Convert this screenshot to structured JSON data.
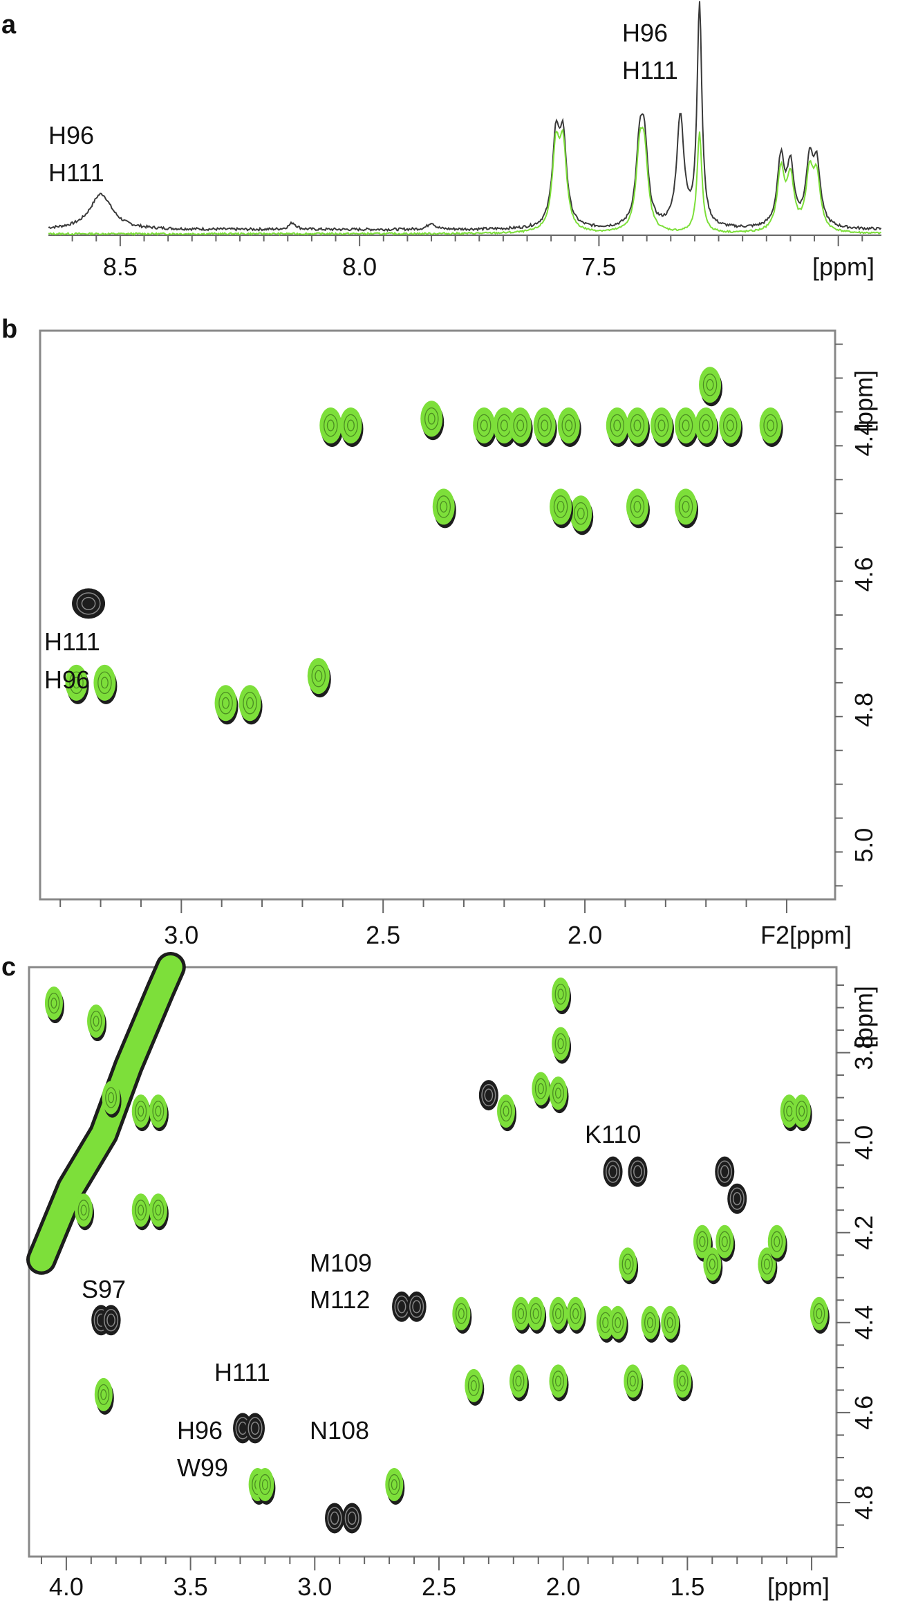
{
  "chart_data": [
    {
      "panel": "a",
      "type": "line",
      "x_unit": "[ppm]",
      "xlim": [
        8.65,
        6.91
      ],
      "xticks": [
        "8.5",
        "8.0",
        "7.5"
      ],
      "xtick_values": [
        8.5,
        8.0,
        7.5
      ],
      "series": [
        {
          "color": "#3a3a3a",
          "peaks": [
            [
              8.54,
              0.16
            ],
            [
              8.14,
              0.03
            ],
            [
              7.85,
              0.03
            ],
            [
              7.59,
              0.38
            ],
            [
              7.575,
              0.38
            ],
            [
              7.415,
              0.33
            ],
            [
              7.405,
              0.33
            ],
            [
              7.33,
              0.5
            ],
            [
              7.29,
              1.0
            ],
            [
              7.12,
              0.3
            ],
            [
              7.1,
              0.26
            ],
            [
              7.06,
              0.28
            ],
            [
              7.045,
              0.26
            ]
          ]
        },
        {
          "color": "#7ddf3a",
          "peaks": [
            [
              7.59,
              0.36
            ],
            [
              7.575,
              0.36
            ],
            [
              7.415,
              0.31
            ],
            [
              7.405,
              0.31
            ],
            [
              7.29,
              0.45
            ],
            [
              7.12,
              0.27
            ],
            [
              7.1,
              0.23
            ],
            [
              7.06,
              0.25
            ],
            [
              7.045,
              0.23
            ]
          ]
        }
      ],
      "annotations": [
        {
          "lines": [
            "H96",
            "H111"
          ],
          "x": 8.54
        },
        {
          "lines": [
            "H96",
            "H111"
          ],
          "x": 7.29
        }
      ]
    },
    {
      "panel": "b",
      "type": "scatter",
      "x_unit": "F2[ppm]",
      "y_unit": "[ppm]",
      "xlim": [
        3.35,
        1.38
      ],
      "ylim": [
        4.24,
        5.08
      ],
      "xticks": [
        "3.0",
        "2.5",
        "2.0"
      ],
      "xtick_values": [
        3.0,
        2.5,
        2.0
      ],
      "yticks": [
        "4.4",
        "4.6",
        "4.8",
        "5.0"
      ],
      "ytick_values": [
        4.4,
        4.6,
        4.8,
        5.0
      ],
      "peaks_black_only": [
        [
          3.23,
          4.64
        ]
      ],
      "peaks_both": [
        [
          3.19,
          4.76
        ],
        [
          3.26,
          4.76
        ],
        [
          2.89,
          4.79
        ],
        [
          2.83,
          4.79
        ],
        [
          2.66,
          4.75
        ],
        [
          2.63,
          4.38
        ],
        [
          2.58,
          4.38
        ],
        [
          2.38,
          4.37
        ],
        [
          2.35,
          4.5
        ],
        [
          2.25,
          4.38
        ],
        [
          2.2,
          4.38
        ],
        [
          2.16,
          4.38
        ],
        [
          2.1,
          4.38
        ],
        [
          2.04,
          4.38
        ],
        [
          2.01,
          4.51
        ],
        [
          2.06,
          4.5
        ],
        [
          1.92,
          4.38
        ],
        [
          1.87,
          4.38
        ],
        [
          1.81,
          4.38
        ],
        [
          1.75,
          4.38
        ],
        [
          1.7,
          4.38
        ],
        [
          1.64,
          4.38
        ],
        [
          1.54,
          4.38
        ],
        [
          1.87,
          4.5
        ],
        [
          1.75,
          4.5
        ],
        [
          1.69,
          4.32
        ]
      ],
      "annotations": [
        {
          "lines": [
            "H111",
            "H96"
          ],
          "x": 3.36,
          "y": 4.74
        }
      ]
    },
    {
      "panel": "c",
      "type": "scatter",
      "x_unit": "[ppm]",
      "y_unit": "[ppm]",
      "xlim": [
        4.15,
        0.9
      ],
      "ylim": [
        3.61,
        4.92
      ],
      "xticks": [
        "4.0",
        "3.5",
        "3.0",
        "2.5",
        "2.0",
        "1.5"
      ],
      "xtick_values": [
        4.0,
        3.5,
        3.0,
        2.5,
        2.0,
        1.5
      ],
      "yticks": [
        "3.8",
        "4.0",
        "4.2",
        "4.4",
        "4.6",
        "4.8"
      ],
      "ytick_values": [
        3.8,
        4.0,
        4.2,
        4.4,
        4.6,
        4.8
      ],
      "peaks_black_only": [
        [
          3.86,
          4.39
        ],
        [
          3.82,
          4.39
        ],
        [
          3.29,
          4.63
        ],
        [
          3.24,
          4.63
        ],
        [
          2.65,
          4.36
        ],
        [
          2.59,
          4.36
        ],
        [
          1.8,
          4.06
        ],
        [
          1.7,
          4.06
        ],
        [
          2.92,
          4.83
        ],
        [
          2.85,
          4.83
        ],
        [
          2.3,
          3.89
        ],
        [
          1.35,
          4.06
        ],
        [
          1.3,
          4.12
        ]
      ],
      "peaks_both": [
        [
          3.23,
          4.76
        ],
        [
          3.2,
          4.76
        ],
        [
          3.85,
          4.56
        ],
        [
          2.68,
          4.76
        ],
        [
          2.41,
          4.38
        ],
        [
          2.36,
          4.54
        ],
        [
          2.23,
          3.93
        ],
        [
          2.17,
          4.38
        ],
        [
          2.11,
          4.38
        ],
        [
          2.18,
          4.53
        ],
        [
          2.09,
          3.88
        ],
        [
          2.01,
          3.67
        ],
        [
          2.01,
          3.78
        ],
        [
          2.02,
          3.89
        ],
        [
          2.02,
          4.53
        ],
        [
          2.02,
          4.38
        ],
        [
          1.95,
          4.38
        ],
        [
          1.83,
          4.4
        ],
        [
          1.78,
          4.4
        ],
        [
          1.72,
          4.53
        ],
        [
          1.74,
          4.27
        ],
        [
          1.65,
          4.4
        ],
        [
          1.57,
          4.4
        ],
        [
          1.52,
          4.53
        ],
        [
          1.44,
          4.22
        ],
        [
          1.4,
          4.27
        ],
        [
          1.35,
          4.22
        ],
        [
          1.18,
          4.27
        ],
        [
          1.14,
          4.22
        ],
        [
          1.09,
          3.93
        ],
        [
          1.04,
          3.93
        ],
        [
          0.97,
          4.38
        ],
        [
          4.05,
          3.69
        ],
        [
          3.88,
          3.73
        ],
        [
          3.82,
          3.9
        ],
        [
          3.7,
          3.93
        ],
        [
          3.63,
          3.93
        ],
        [
          3.7,
          4.15
        ],
        [
          3.63,
          4.15
        ],
        [
          3.93,
          4.15
        ]
      ],
      "diagonal_band": [
        [
          4.1,
          4.26
        ],
        [
          3.98,
          4.1
        ],
        [
          3.85,
          3.98
        ],
        [
          3.75,
          3.83
        ],
        [
          3.62,
          3.66
        ],
        [
          3.58,
          3.61
        ]
      ],
      "annotations": [
        {
          "lines": [
            "K110"
          ],
          "x": 1.78,
          "y": 3.95
        },
        {
          "lines": [
            "M109",
            "M112"
          ],
          "x": 2.95,
          "y": 4.34
        },
        {
          "lines": [
            "S97"
          ],
          "x": 3.9,
          "y": 4.31
        },
        {
          "lines": [
            "H111"
          ],
          "x": 3.27,
          "y": 4.55
        },
        {
          "lines": [
            "H96",
            "W99"
          ],
          "x": 3.36,
          "y": 4.78
        },
        {
          "lines": [
            "N108"
          ],
          "x": 2.93,
          "y": 4.72
        }
      ]
    }
  ],
  "colors": {
    "black_spectrum": "#3a3a3a",
    "green_spectrum": "#7ddf3a",
    "frame": "#888888"
  }
}
